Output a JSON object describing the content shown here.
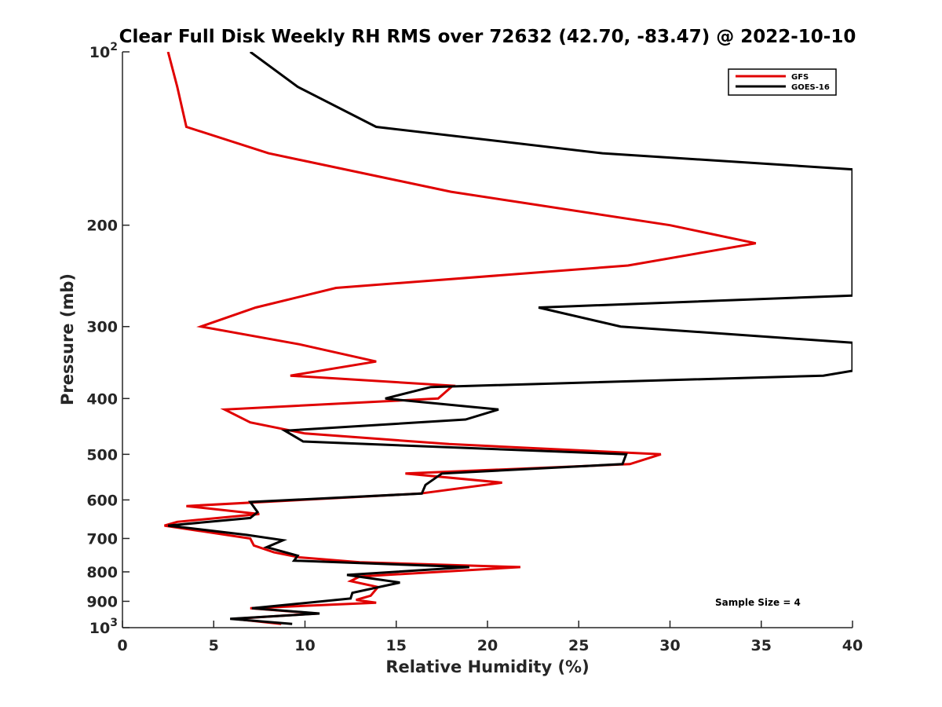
{
  "chart_data": {
    "type": "line",
    "title": "Clear Full Disk Weekly RH RMS over 72632 (42.70, -83.47) @ 2022-10-10",
    "xlabel": "Relative Humidity (%)",
    "ylabel": "Pressure (mb)",
    "xlim": [
      0,
      40
    ],
    "ylim": [
      100,
      1000
    ],
    "y_scale": "log",
    "y_reversed": true,
    "grid": false,
    "legend_position": "top-right",
    "x_ticks": [
      0,
      5,
      10,
      15,
      20,
      25,
      30,
      35,
      40
    ],
    "y_ticks": [
      100,
      200,
      300,
      400,
      500,
      600,
      700,
      800,
      900,
      1000
    ],
    "y_tick_labels": [
      {
        "value": 100,
        "base": "10",
        "exp": "2"
      },
      {
        "value": 200,
        "base": "200",
        "exp": ""
      },
      {
        "value": 300,
        "base": "300",
        "exp": ""
      },
      {
        "value": 400,
        "base": "400",
        "exp": ""
      },
      {
        "value": 500,
        "base": "500",
        "exp": ""
      },
      {
        "value": 600,
        "base": "600",
        "exp": ""
      },
      {
        "value": 700,
        "base": "700",
        "exp": ""
      },
      {
        "value": 800,
        "base": "800",
        "exp": ""
      },
      {
        "value": 900,
        "base": "900",
        "exp": ""
      },
      {
        "value": 1000,
        "base": "10",
        "exp": "3"
      }
    ],
    "annotation": "Sample Size = 4",
    "series": [
      {
        "name": "GFS",
        "color": "#e00000",
        "points": [
          [
            2.5,
            100
          ],
          [
            3.0,
            115
          ],
          [
            3.5,
            135
          ],
          [
            8.0,
            150
          ],
          [
            18.0,
            175
          ],
          [
            30.0,
            200
          ],
          [
            34.7,
            215
          ],
          [
            27.7,
            235
          ],
          [
            11.7,
            257
          ],
          [
            7.3,
            278
          ],
          [
            4.3,
            300
          ],
          [
            9.7,
            322
          ],
          [
            13.9,
            345
          ],
          [
            9.2,
            365
          ],
          [
            18.1,
            380
          ],
          [
            17.3,
            400
          ],
          [
            5.6,
            418
          ],
          [
            7.0,
            440
          ],
          [
            10.0,
            460
          ],
          [
            17.9,
            480
          ],
          [
            29.5,
            500
          ],
          [
            27.8,
            520
          ],
          [
            15.5,
            540
          ],
          [
            20.8,
            560
          ],
          [
            16.3,
            585
          ],
          [
            3.5,
            615
          ],
          [
            7.5,
            635
          ],
          [
            3.0,
            655
          ],
          [
            2.3,
            665
          ],
          [
            7.0,
            700
          ],
          [
            7.2,
            720
          ],
          [
            8.3,
            740
          ],
          [
            9.7,
            755
          ],
          [
            13.0,
            770
          ],
          [
            21.8,
            785
          ],
          [
            13.0,
            815
          ],
          [
            12.5,
            830
          ],
          [
            14.0,
            850
          ],
          [
            13.6,
            880
          ],
          [
            12.8,
            895
          ],
          [
            13.9,
            905
          ],
          [
            7.0,
            925
          ],
          [
            10.7,
            945
          ],
          [
            6.1,
            965
          ],
          [
            8.7,
            985
          ]
        ]
      },
      {
        "name": "GOES-16",
        "color": "#000000",
        "points": [
          [
            7.0,
            100
          ],
          [
            9.6,
            115
          ],
          [
            13.9,
            135
          ],
          [
            26.3,
            150
          ],
          [
            40.0,
            160
          ],
          [
            40.0,
            265
          ],
          [
            22.8,
            278
          ],
          [
            27.3,
            300
          ],
          [
            40.0,
            320
          ],
          [
            40.0,
            358
          ],
          [
            38.4,
            365
          ],
          [
            16.9,
            382
          ],
          [
            14.4,
            400
          ],
          [
            20.6,
            418
          ],
          [
            18.8,
            435
          ],
          [
            8.9,
            455
          ],
          [
            9.9,
            475
          ],
          [
            27.6,
            500
          ],
          [
            27.4,
            520
          ],
          [
            17.5,
            540
          ],
          [
            16.6,
            565
          ],
          [
            16.4,
            585
          ],
          [
            7.0,
            605
          ],
          [
            7.4,
            630
          ],
          [
            7.0,
            645
          ],
          [
            2.5,
            665
          ],
          [
            6.8,
            690
          ],
          [
            8.8,
            705
          ],
          [
            7.9,
            725
          ],
          [
            9.6,
            750
          ],
          [
            9.4,
            765
          ],
          [
            19.0,
            785
          ],
          [
            12.3,
            810
          ],
          [
            15.2,
            835
          ],
          [
            12.6,
            870
          ],
          [
            12.5,
            890
          ],
          [
            7.1,
            925
          ],
          [
            10.8,
            945
          ],
          [
            5.9,
            965
          ],
          [
            9.3,
            985
          ]
        ]
      }
    ]
  }
}
